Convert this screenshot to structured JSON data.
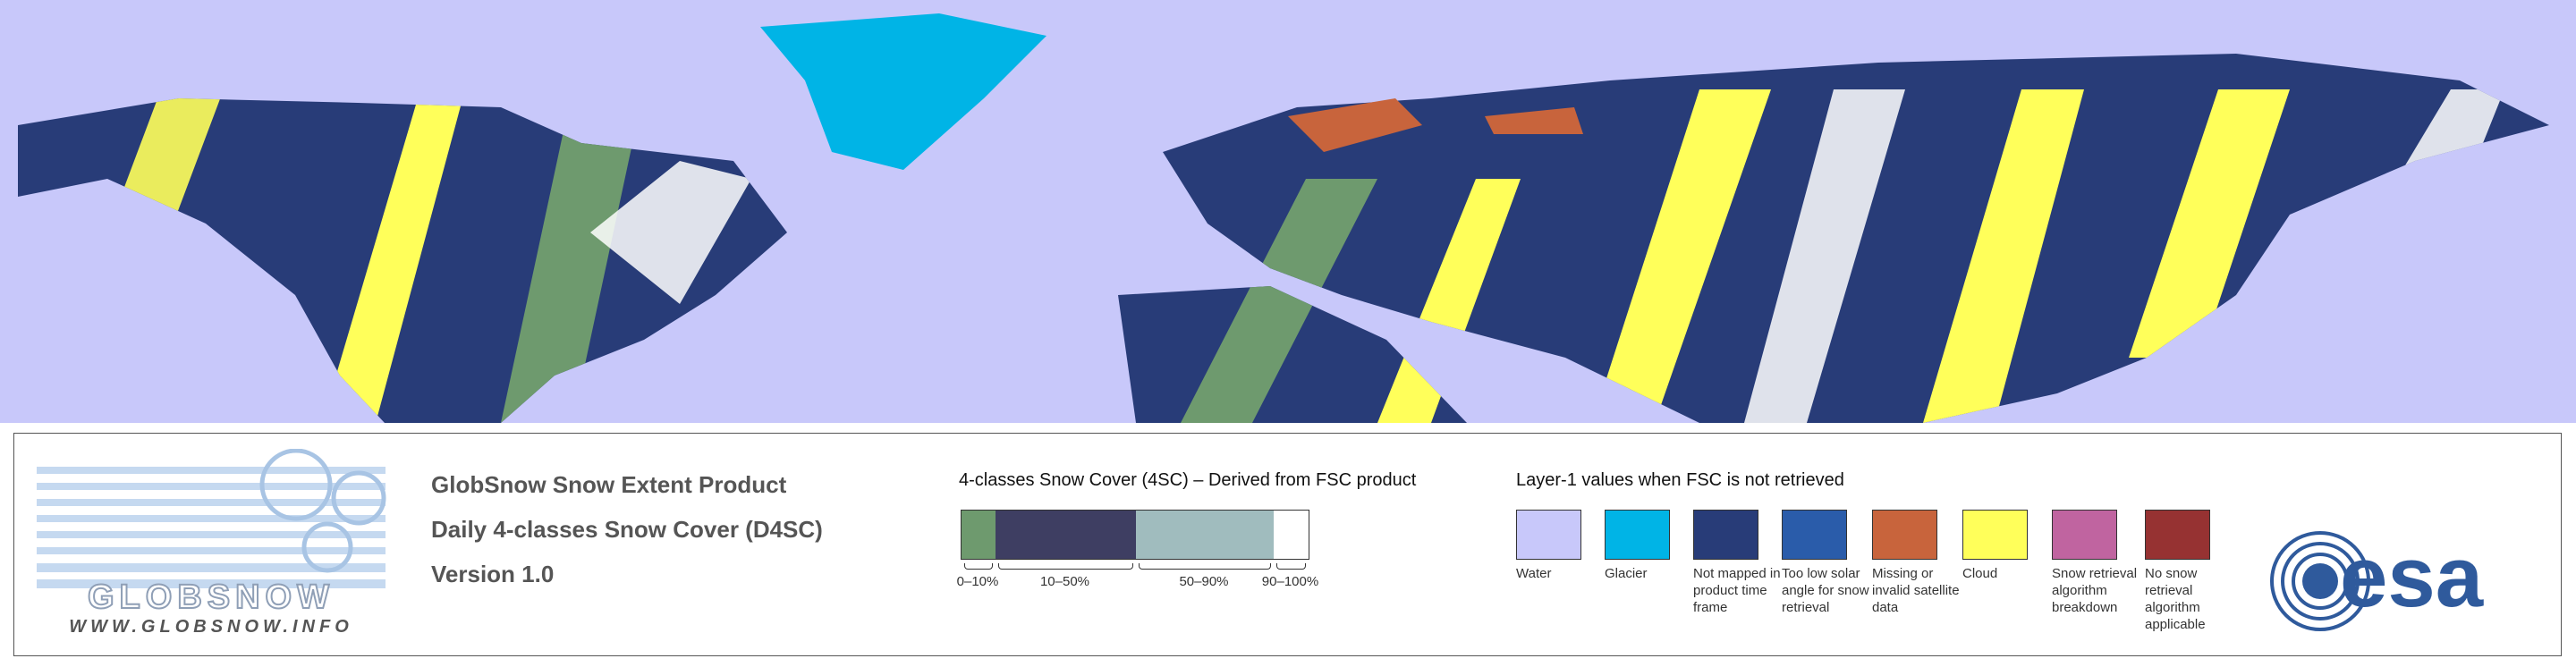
{
  "header": {
    "title": "GlobSnow Snow Extent Product",
    "subtitle": "Daily 4-classes Snow Cover (D4SC)",
    "version": "Version 1.0"
  },
  "logo": {
    "wordmark": "GLOBSNOW",
    "url": "WWW.GLOBSNOW.INFO"
  },
  "snow_cover_legend": {
    "title": "4-classes Snow Cover (4SC) – Derived from FSC product",
    "classes": [
      {
        "label": "0–10%",
        "color": "#6e9a6e"
      },
      {
        "label": "10–50%",
        "color": "#3e3e62"
      },
      {
        "label": "50–90%",
        "color": "#a0bcbe"
      },
      {
        "label": "90–100%",
        "color": "#ffffff"
      }
    ]
  },
  "layer1_legend": {
    "title": "Layer-1 values when FSC is not retrieved",
    "items": [
      {
        "label": "Water",
        "color": "#c8c8fa"
      },
      {
        "label": "Glacier",
        "color": "#00b4e6"
      },
      {
        "label": "Not mapped in product time frame",
        "color": "#283c78"
      },
      {
        "label": "Too low solar angle for snow retrieval",
        "color": "#2a5caa"
      },
      {
        "label": "Missing or invalid satellite data",
        "color": "#c8643c"
      },
      {
        "label": "Cloud",
        "color": "#ffff5a"
      },
      {
        "label": "Snow retrieval algorithm breakdown",
        "color": "#c064a0"
      },
      {
        "label": "No snow retrieval algorithm applicable",
        "color": "#963232"
      }
    ]
  },
  "esa_logo": "esa"
}
